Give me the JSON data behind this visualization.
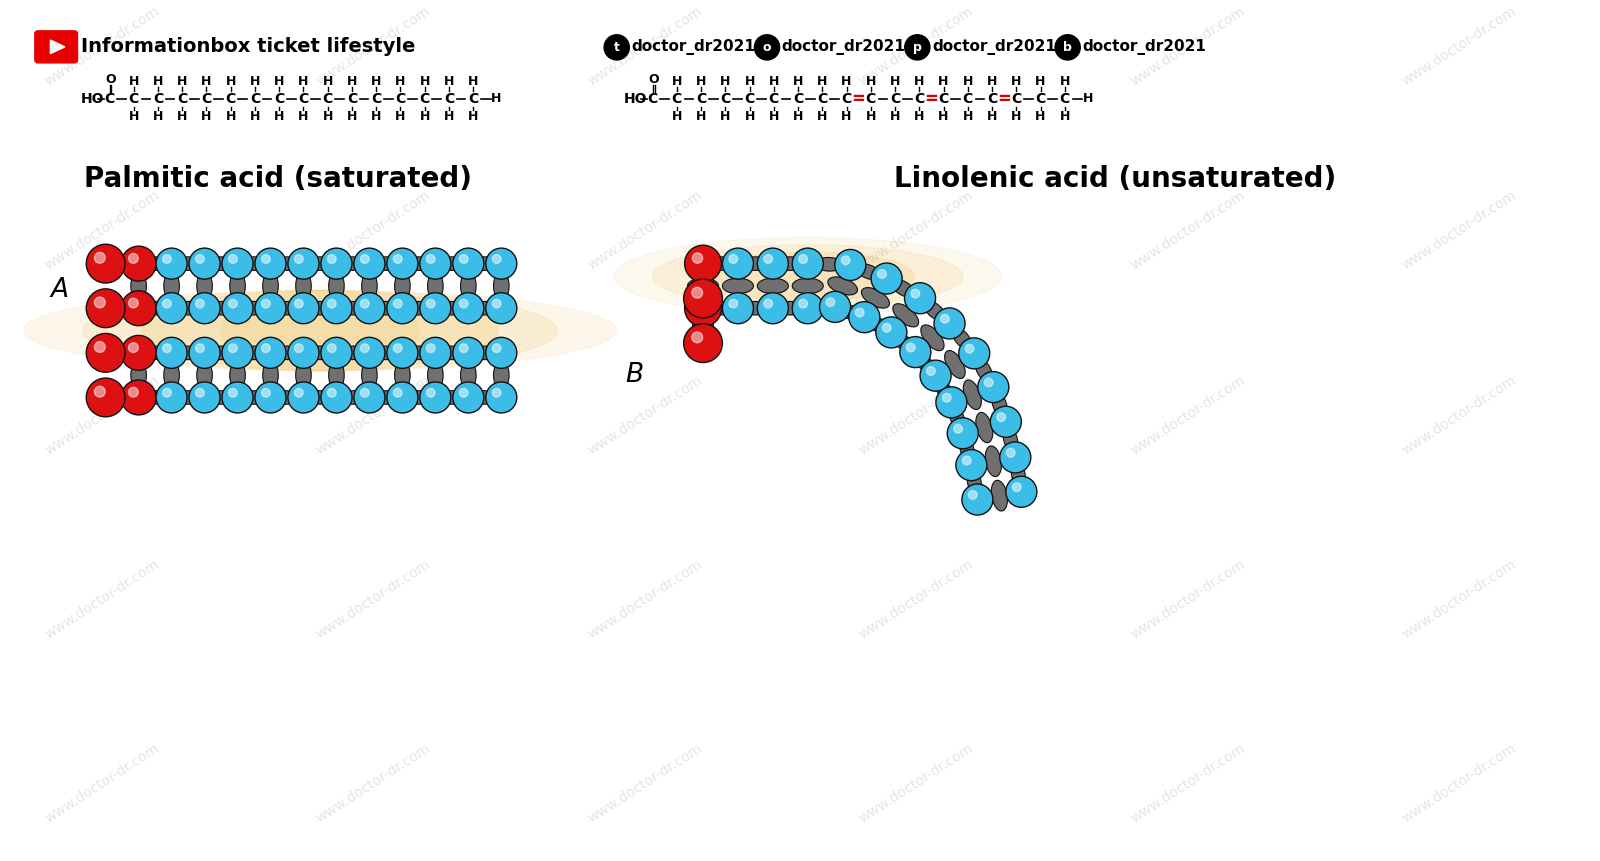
{
  "background_color": "#ffffff",
  "title_left": "Palmitic acid (saturated)",
  "title_right": "Linolenic acid (unsaturated)",
  "label_A": "A",
  "label_B": "B",
  "youtube_text": "Informationbox ticket lifestyle",
  "social_handles": [
    "doctor_dr2021",
    "doctor_dr2021",
    "doctor_dr2021",
    "doctor_dr2021"
  ],
  "watermark": "www.doctor-dr.com",
  "head_color": "#dd1111",
  "tail_color": "#3bbde8",
  "body_color": "#707070",
  "glow_color": "#f0c060",
  "red_bond_color": "#dd0000",
  "title_fontsize": 20,
  "formula_fontsize": 10
}
